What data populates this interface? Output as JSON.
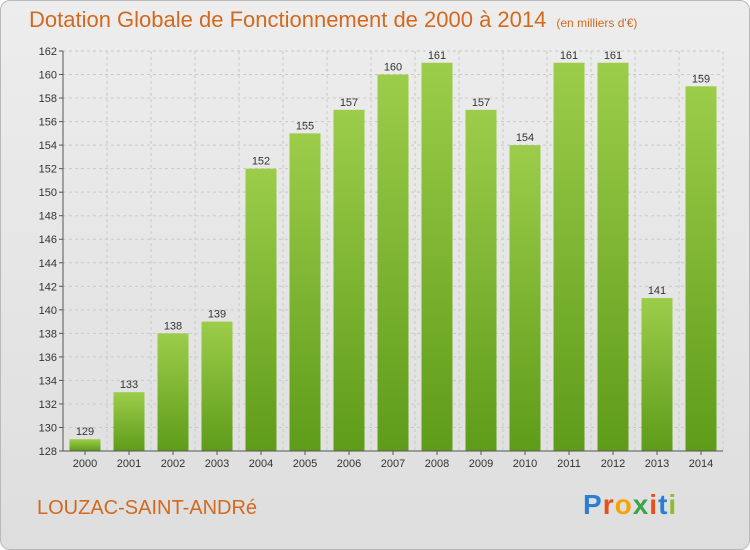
{
  "title": "Dotation Globale de Fonctionnement de 2000 à 2014",
  "subtitle": "(en milliers d'€)",
  "commune": "LOUZAC-SAINT-ANDRé",
  "logo": {
    "letters": [
      "P",
      "r",
      "o",
      "x",
      "i",
      "t",
      "i"
    ],
    "colors": [
      "#2a7fd4",
      "#e94e1b",
      "#f5a300",
      "#3aa64a",
      "#e94e1b",
      "#2a7fd4",
      "#8fbd2c"
    ]
  },
  "colors": {
    "bar_light": "#9ccd4a",
    "bar_dark": "#5e9c19",
    "title": "#d2691e"
  },
  "chart_data": {
    "type": "bar",
    "title": "Dotation Globale de Fonctionnement de 2000 à 2014",
    "subtitle": "(en milliers d'€)",
    "categories": [
      "2000",
      "2001",
      "2002",
      "2003",
      "2004",
      "2005",
      "2006",
      "2007",
      "2008",
      "2009",
      "2010",
      "2011",
      "2012",
      "2013",
      "2014"
    ],
    "values": [
      129,
      133,
      138,
      139,
      152,
      155,
      157,
      160,
      161,
      157,
      154,
      161,
      161,
      141,
      159
    ],
    "ylim": [
      128,
      162
    ],
    "yticks": [
      128,
      130,
      132,
      134,
      136,
      138,
      140,
      142,
      144,
      146,
      148,
      150,
      152,
      154,
      156,
      158,
      160,
      162
    ],
    "grid": true
  }
}
